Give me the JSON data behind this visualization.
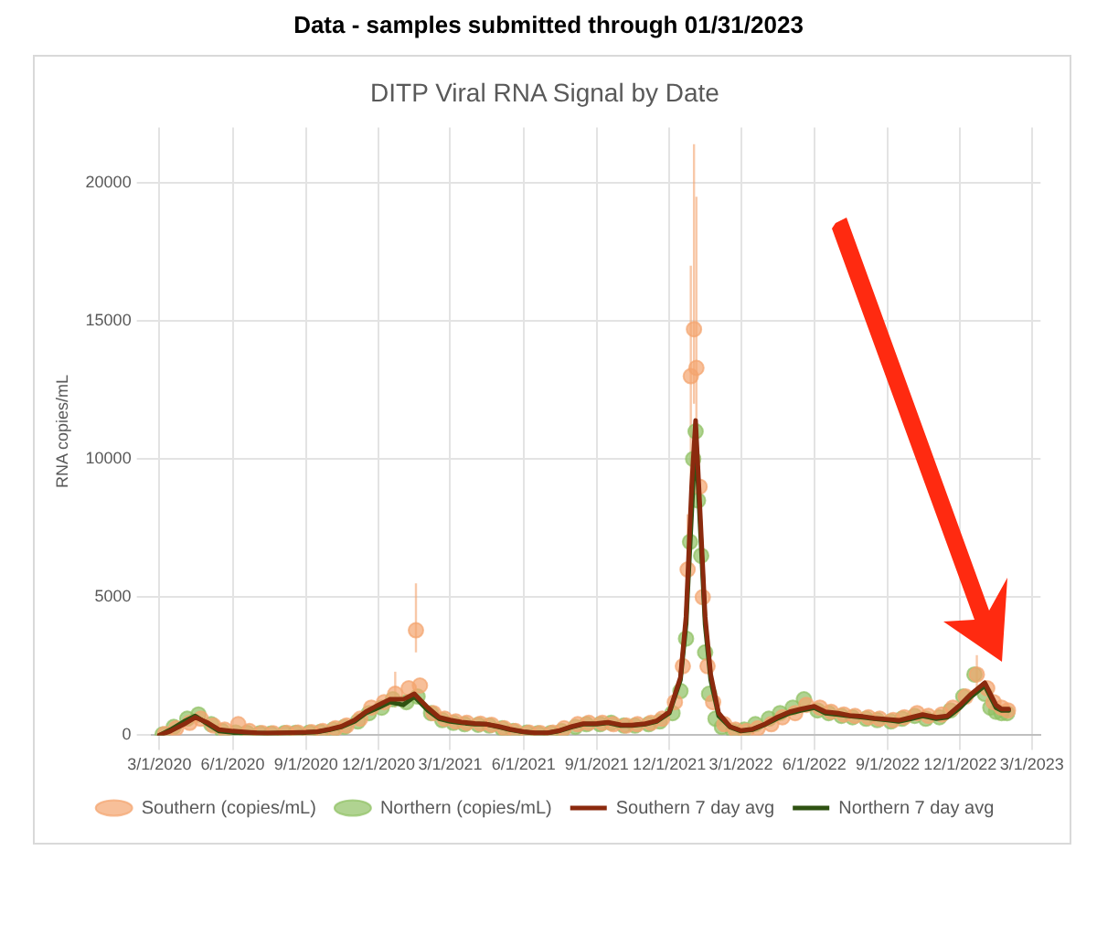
{
  "chart_data": {
    "type": "scatter",
    "title": "Data - samples submitted through 01/31/2023",
    "subtitle": "DITP Viral RNA Signal by Date",
    "ylabel": "RNA copies/mL",
    "xlim": [
      "2020-02-20",
      "2023-03-12"
    ],
    "xticks": [
      {
        "value": "2020-03-01",
        "label": "3/1/2020"
      },
      {
        "value": "2020-06-01",
        "label": "6/1/2020"
      },
      {
        "value": "2020-09-01",
        "label": "9/1/2020"
      },
      {
        "value": "2020-12-01",
        "label": "12/1/2020"
      },
      {
        "value": "2021-03-01",
        "label": "3/1/2021"
      },
      {
        "value": "2021-06-01",
        "label": "6/1/2021"
      },
      {
        "value": "2021-09-01",
        "label": "9/1/2021"
      },
      {
        "value": "2021-12-01",
        "label": "12/1/2021"
      },
      {
        "value": "2022-03-01",
        "label": "3/1/2022"
      },
      {
        "value": "2022-06-01",
        "label": "6/1/2022"
      },
      {
        "value": "2022-09-01",
        "label": "9/1/2022"
      },
      {
        "value": "2022-12-01",
        "label": "12/1/2022"
      },
      {
        "value": "2023-03-01",
        "label": "3/1/2023"
      }
    ],
    "ylim": [
      0,
      22000
    ],
    "yticks": [
      0,
      5000,
      10000,
      15000,
      20000
    ],
    "grid": true,
    "legend": "bottom",
    "series": [
      {
        "name": "Southern (copies/mL)",
        "type": "scatter",
        "color": "#f4a46e",
        "marker": "circle",
        "x": [
          "2020-03-08",
          "2020-03-22",
          "2020-04-08",
          "2020-04-22",
          "2020-05-08",
          "2020-05-22",
          "2020-06-08",
          "2020-06-22",
          "2020-07-08",
          "2020-07-22",
          "2020-08-08",
          "2020-08-22",
          "2020-09-08",
          "2020-09-22",
          "2020-10-08",
          "2020-10-22",
          "2020-11-08",
          "2020-11-22",
          "2020-12-08",
          "2020-12-22",
          "2021-01-08",
          "2021-01-17",
          "2021-01-22",
          "2021-02-08",
          "2021-02-22",
          "2021-03-08",
          "2021-03-22",
          "2021-04-08",
          "2021-04-22",
          "2021-05-08",
          "2021-05-22",
          "2021-06-08",
          "2021-06-22",
          "2021-07-08",
          "2021-07-22",
          "2021-08-08",
          "2021-08-22",
          "2021-09-08",
          "2021-09-22",
          "2021-10-08",
          "2021-10-22",
          "2021-11-08",
          "2021-11-22",
          "2021-12-08",
          "2021-12-18",
          "2021-12-24",
          "2021-12-28",
          "2022-01-01",
          "2022-01-04",
          "2022-01-08",
          "2022-01-12",
          "2022-01-18",
          "2022-01-25",
          "2022-02-08",
          "2022-02-22",
          "2022-03-08",
          "2022-03-22",
          "2022-04-08",
          "2022-04-22",
          "2022-05-08",
          "2022-05-22",
          "2022-06-08",
          "2022-06-22",
          "2022-07-08",
          "2022-07-22",
          "2022-08-08",
          "2022-08-22",
          "2022-09-08",
          "2022-09-22",
          "2022-10-08",
          "2022-10-22",
          "2022-11-08",
          "2022-11-22",
          "2022-12-08",
          "2022-12-22",
          "2023-01-04",
          "2023-01-12",
          "2023-01-22",
          "2023-01-30"
        ],
        "values": [
          50,
          250,
          450,
          600,
          350,
          200,
          400,
          150,
          80,
          70,
          90,
          100,
          110,
          150,
          250,
          350,
          600,
          1000,
          1200,
          1500,
          1700,
          3800,
          1800,
          800,
          600,
          500,
          450,
          420,
          380,
          250,
          150,
          100,
          80,
          100,
          250,
          400,
          450,
          450,
          400,
          350,
          400,
          450,
          600,
          1200,
          2500,
          6000,
          13000,
          14700,
          13300,
          9000,
          5000,
          2500,
          1200,
          400,
          200,
          150,
          250,
          400,
          650,
          800,
          1100,
          1000,
          850,
          750,
          700,
          650,
          600,
          550,
          650,
          800,
          700,
          750,
          1000,
          1400,
          2200,
          1700,
          1200,
          1000,
          900
        ],
        "errors": [
          null,
          null,
          null,
          null,
          null,
          null,
          null,
          null,
          null,
          null,
          null,
          null,
          null,
          null,
          null,
          null,
          null,
          null,
          null,
          [
            1000,
            2300
          ],
          null,
          [
            3000,
            5500
          ],
          null,
          null,
          null,
          null,
          null,
          null,
          null,
          null,
          null,
          null,
          null,
          null,
          null,
          null,
          null,
          null,
          null,
          null,
          null,
          null,
          null,
          null,
          null,
          [
            4000,
            8000
          ],
          [
            9000,
            17000
          ],
          [
            12000,
            21400
          ],
          [
            10000,
            19500
          ],
          null,
          null,
          null,
          null,
          null,
          null,
          null,
          null,
          null,
          null,
          null,
          null,
          null,
          null,
          null,
          null,
          null,
          null,
          null,
          null,
          null,
          null,
          null,
          null,
          null,
          [
            1700,
            2900
          ],
          null,
          null,
          null,
          null
        ]
      },
      {
        "name": "Northern (copies/mL)",
        "type": "scatter",
        "color": "#8fc163",
        "marker": "circle",
        "x": [
          "2020-03-05",
          "2020-03-19",
          "2020-04-05",
          "2020-04-19",
          "2020-05-05",
          "2020-05-19",
          "2020-06-05",
          "2020-06-19",
          "2020-07-05",
          "2020-07-19",
          "2020-08-05",
          "2020-08-19",
          "2020-09-05",
          "2020-09-19",
          "2020-10-05",
          "2020-10-19",
          "2020-11-05",
          "2020-11-19",
          "2020-12-05",
          "2020-12-19",
          "2021-01-05",
          "2021-01-19",
          "2021-02-05",
          "2021-02-19",
          "2021-03-05",
          "2021-03-19",
          "2021-04-05",
          "2021-04-19",
          "2021-05-05",
          "2021-05-19",
          "2021-06-05",
          "2021-06-19",
          "2021-07-05",
          "2021-07-19",
          "2021-08-05",
          "2021-08-19",
          "2021-09-05",
          "2021-09-19",
          "2021-10-05",
          "2021-10-19",
          "2021-11-05",
          "2021-11-19",
          "2021-12-05",
          "2021-12-15",
          "2021-12-22",
          "2021-12-27",
          "2021-12-31",
          "2022-01-03",
          "2022-01-06",
          "2022-01-10",
          "2022-01-15",
          "2022-01-20",
          "2022-01-28",
          "2022-02-05",
          "2022-02-19",
          "2022-03-05",
          "2022-03-19",
          "2022-04-05",
          "2022-04-19",
          "2022-05-05",
          "2022-05-19",
          "2022-06-05",
          "2022-06-19",
          "2022-07-05",
          "2022-07-19",
          "2022-08-05",
          "2022-08-19",
          "2022-09-05",
          "2022-09-19",
          "2022-10-05",
          "2022-10-19",
          "2022-11-05",
          "2022-11-19",
          "2022-12-05",
          "2022-12-19",
          "2023-01-01",
          "2023-01-08",
          "2023-01-15",
          "2023-01-22",
          "2023-01-29"
        ],
        "values": [
          30,
          300,
          600,
          750,
          400,
          150,
          100,
          90,
          70,
          60,
          80,
          90,
          100,
          120,
          200,
          300,
          500,
          800,
          1000,
          1300,
          1200,
          1400,
          800,
          550,
          450,
          400,
          380,
          350,
          250,
          150,
          100,
          70,
          80,
          150,
          300,
          400,
          400,
          450,
          350,
          350,
          400,
          500,
          800,
          1600,
          3500,
          7000,
          10000,
          11000,
          8500,
          6500,
          3000,
          1500,
          600,
          300,
          150,
          200,
          400,
          600,
          800,
          1000,
          1300,
          900,
          800,
          700,
          650,
          600,
          550,
          500,
          600,
          700,
          600,
          650,
          900,
          1400,
          2200,
          1500,
          1000,
          850,
          800,
          800
        ]
      },
      {
        "name": "Southern 7 day avg",
        "type": "line",
        "color": "#8b2a0e",
        "marker": "none",
        "x": [
          "2020-03-01",
          "2020-03-15",
          "2020-04-01",
          "2020-04-15",
          "2020-05-01",
          "2020-05-15",
          "2020-06-01",
          "2020-06-15",
          "2020-07-01",
          "2020-07-15",
          "2020-08-01",
          "2020-08-15",
          "2020-09-01",
          "2020-09-15",
          "2020-10-01",
          "2020-10-15",
          "2020-11-01",
          "2020-11-15",
          "2020-12-01",
          "2020-12-15",
          "2021-01-01",
          "2021-01-15",
          "2021-02-01",
          "2021-02-15",
          "2021-03-01",
          "2021-03-15",
          "2021-04-01",
          "2021-04-15",
          "2021-05-01",
          "2021-05-15",
          "2021-06-01",
          "2021-06-15",
          "2021-07-01",
          "2021-07-15",
          "2021-08-01",
          "2021-08-15",
          "2021-09-01",
          "2021-09-15",
          "2021-10-01",
          "2021-10-15",
          "2021-11-01",
          "2021-11-15",
          "2021-12-01",
          "2021-12-15",
          "2021-12-22",
          "2021-12-29",
          "2022-01-03",
          "2022-01-08",
          "2022-01-15",
          "2022-01-22",
          "2022-02-01",
          "2022-02-15",
          "2022-03-01",
          "2022-03-15",
          "2022-04-01",
          "2022-04-15",
          "2022-05-01",
          "2022-05-15",
          "2022-06-01",
          "2022-06-15",
          "2022-07-01",
          "2022-07-15",
          "2022-08-01",
          "2022-08-15",
          "2022-09-01",
          "2022-09-15",
          "2022-10-01",
          "2022-10-15",
          "2022-11-01",
          "2022-11-15",
          "2022-12-01",
          "2022-12-15",
          "2023-01-01",
          "2023-01-08",
          "2023-01-15",
          "2023-01-22",
          "2023-01-31"
        ],
        "values": [
          0,
          150,
          400,
          650,
          450,
          200,
          150,
          120,
          90,
          80,
          90,
          100,
          110,
          130,
          220,
          320,
          550,
          850,
          1100,
          1300,
          1300,
          1500,
          1000,
          650,
          550,
          480,
          430,
          400,
          320,
          220,
          130,
          90,
          90,
          160,
          320,
          420,
          430,
          470,
          380,
          370,
          420,
          520,
          850,
          2100,
          4300,
          9000,
          11400,
          8500,
          4300,
          2200,
          800,
          320,
          170,
          220,
          420,
          650,
          850,
          950,
          1050,
          850,
          800,
          720,
          680,
          620,
          580,
          540,
          650,
          750,
          650,
          700,
          1100,
          1500,
          1900,
          1500,
          1100,
          950,
          950
        ]
      },
      {
        "name": "Northern 7 day avg",
        "type": "line",
        "color": "#2f5212",
        "marker": "none",
        "x": [
          "2020-03-01",
          "2020-03-15",
          "2020-04-01",
          "2020-04-15",
          "2020-05-01",
          "2020-05-15",
          "2020-06-01",
          "2020-06-15",
          "2020-07-01",
          "2020-07-15",
          "2020-08-01",
          "2020-08-15",
          "2020-09-01",
          "2020-09-15",
          "2020-10-01",
          "2020-10-15",
          "2020-11-01",
          "2020-11-15",
          "2020-12-01",
          "2020-12-15",
          "2021-01-01",
          "2021-01-15",
          "2021-02-01",
          "2021-02-15",
          "2021-03-01",
          "2021-03-15",
          "2021-04-01",
          "2021-04-15",
          "2021-05-01",
          "2021-05-15",
          "2021-06-01",
          "2021-06-15",
          "2021-07-01",
          "2021-07-15",
          "2021-08-01",
          "2021-08-15",
          "2021-09-01",
          "2021-09-15",
          "2021-10-01",
          "2021-10-15",
          "2021-11-01",
          "2021-11-15",
          "2021-12-01",
          "2021-12-15",
          "2021-12-22",
          "2021-12-29",
          "2022-01-03",
          "2022-01-08",
          "2022-01-15",
          "2022-01-22",
          "2022-02-01",
          "2022-02-15",
          "2022-03-01",
          "2022-03-15",
          "2022-04-01",
          "2022-04-15",
          "2022-05-01",
          "2022-05-15",
          "2022-06-01",
          "2022-06-15",
          "2022-07-01",
          "2022-07-15",
          "2022-08-01",
          "2022-08-15",
          "2022-09-01",
          "2022-09-15",
          "2022-10-01",
          "2022-10-15",
          "2022-11-01",
          "2022-11-15",
          "2022-12-01",
          "2022-12-15",
          "2023-01-01",
          "2023-01-08",
          "2023-01-15",
          "2023-01-22",
          "2023-01-31"
        ],
        "values": [
          0,
          200,
          500,
          700,
          400,
          150,
          100,
          100,
          80,
          70,
          80,
          90,
          100,
          120,
          200,
          300,
          500,
          800,
          1000,
          1200,
          1100,
          1400,
          900,
          600,
          500,
          450,
          400,
          400,
          300,
          200,
          120,
          80,
          80,
          150,
          300,
          400,
          400,
          450,
          350,
          350,
          400,
          500,
          800,
          2000,
          4000,
          8000,
          10900,
          8000,
          4000,
          2000,
          700,
          300,
          150,
          200,
          400,
          600,
          800,
          900,
          1000,
          800,
          750,
          700,
          650,
          600,
          550,
          500,
          600,
          700,
          600,
          650,
          1000,
          1400,
          1800,
          1400,
          1000,
          900,
          900
        ]
      }
    ]
  }
}
